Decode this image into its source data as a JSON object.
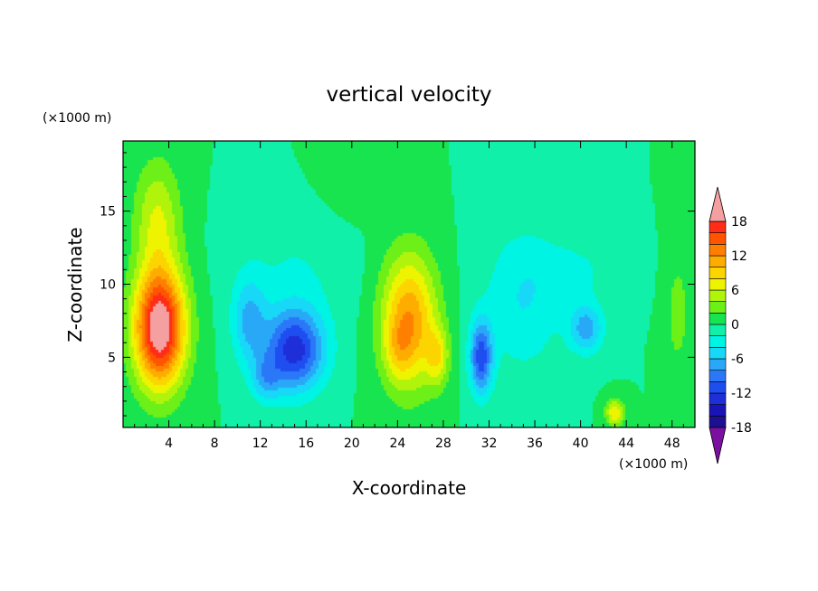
{
  "chart_data": {
    "type": "heatmap",
    "title": "vertical velocity",
    "xlabel": "X-coordinate",
    "ylabel": "Z-coordinate",
    "x_unit": "(×1000 m)",
    "y_unit": "(×1000 m)",
    "xlim": [
      0,
      50
    ],
    "ylim": [
      0.2,
      19.8
    ],
    "x_ticks": [
      4,
      8,
      12,
      16,
      20,
      24,
      28,
      32,
      36,
      40,
      44,
      48
    ],
    "y_ticks": [
      5,
      10,
      15
    ],
    "colorbar": {
      "levels": [
        -20,
        -18,
        -16,
        -14,
        -12,
        -10,
        -8,
        -6,
        -4,
        -2,
        0,
        2,
        4,
        6,
        8,
        10,
        12,
        14,
        16,
        18,
        20
      ],
      "tick_labels": [
        "18",
        "12",
        "6",
        "0",
        "-6",
        "-12",
        "-18"
      ],
      "tick_values": [
        18,
        12,
        6,
        0,
        -6,
        -12,
        -18
      ],
      "colors": [
        "#7a0fa0",
        "#1d1092",
        "#1a14b8",
        "#1e2ed8",
        "#1e4ef0",
        "#2a78f8",
        "#2aa8f8",
        "#18d8f8",
        "#00f4e4",
        "#10f0a8",
        "#18e450",
        "#6cf018",
        "#b0f40c",
        "#eef400",
        "#fcd400",
        "#ffac00",
        "#ff8000",
        "#ff5400",
        "#ff2c18",
        "#f4a0a0"
      ],
      "extend": "both"
    },
    "features": [
      {
        "x": 3.2,
        "z": 7.0,
        "sx": 2.2,
        "sz": 4.0,
        "amp": 21
      },
      {
        "x": 3.0,
        "z": 14.5,
        "sx": 2.0,
        "sz": 4.0,
        "amp": 6
      },
      {
        "x": 15.0,
        "z": 5.5,
        "sx": 2.6,
        "sz": 2.8,
        "amp": -13
      },
      {
        "x": 12.5,
        "z": 3.5,
        "sx": 1.3,
        "sz": 1.6,
        "amp": -5
      },
      {
        "x": 11.0,
        "z": 7.5,
        "sx": 1.5,
        "sz": 3.0,
        "amp": -6
      },
      {
        "x": 15.0,
        "z": 11.0,
        "sx": 5.0,
        "sz": 4.0,
        "amp": -2
      },
      {
        "x": 25.0,
        "z": 7.5,
        "sx": 2.4,
        "sz": 4.5,
        "amp": 12
      },
      {
        "x": 27.5,
        "z": 5.0,
        "sx": 1.0,
        "sz": 2.0,
        "amp": 6
      },
      {
        "x": 24.0,
        "z": 5.5,
        "sx": 1.2,
        "sz": 2.0,
        "amp": 3
      },
      {
        "x": 31.3,
        "z": 5.0,
        "sx": 1.0,
        "sz": 2.5,
        "amp": -11
      },
      {
        "x": 35.0,
        "z": 9.0,
        "sx": 3.5,
        "sz": 5.0,
        "amp": -4
      },
      {
        "x": 40.5,
        "z": 7.0,
        "sx": 1.5,
        "sz": 1.7,
        "amp": -7
      },
      {
        "x": 40.0,
        "z": 11.0,
        "sx": 3.5,
        "sz": 2.2,
        "amp": -2
      },
      {
        "x": 43.0,
        "z": 1.2,
        "sx": 0.8,
        "sz": 0.9,
        "amp": 8
      },
      {
        "x": 48.5,
        "z": 8.0,
        "sx": 1.0,
        "sz": 4.0,
        "amp": 3
      },
      {
        "x": 20.0,
        "z": 17.0,
        "sx": 3.0,
        "sz": 3.0,
        "amp": 1
      }
    ]
  }
}
